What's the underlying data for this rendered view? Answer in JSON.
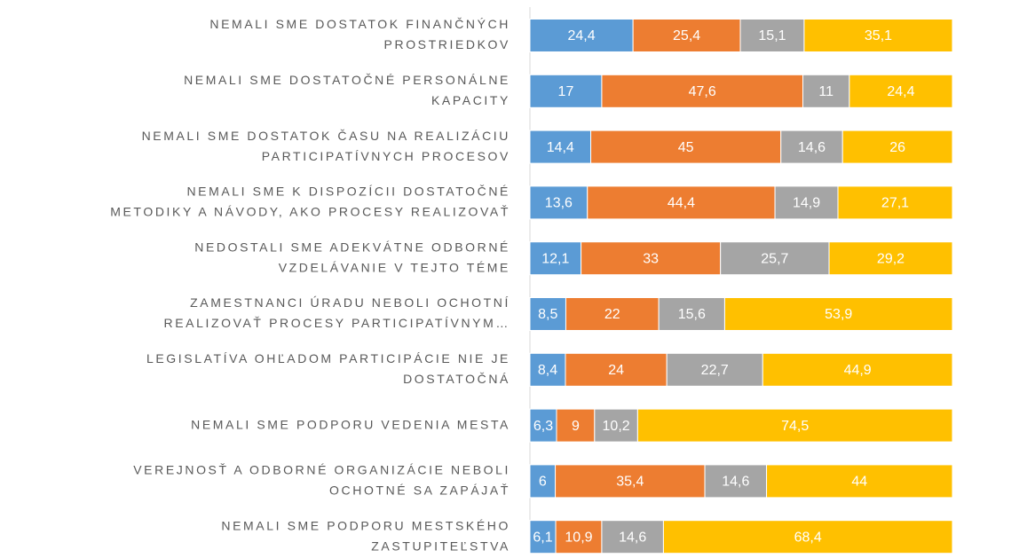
{
  "chart_data": {
    "type": "stacked-bar-horizontal",
    "categories": [
      [
        "NEMALI SME DOSTATOK FINANČNÝCH",
        "PROSTRIEDKOV"
      ],
      [
        "NEMALI SME DOSTATOČNÉ PERSONÁLNE",
        "KAPACITY"
      ],
      [
        "NEMALI SME DOSTATOK ČASU NA REALIZÁCIU",
        "PARTICIPATÍVNYCH PROCESOV"
      ],
      [
        "NEMALI SME K DISPOZÍCII DOSTATOČNÉ",
        "METODIKY A NÁVODY, AKO PROCESY REALIZOVAŤ"
      ],
      [
        "NEDOSTALI SME ADEKVÁTNE ODBORNÉ",
        "VZDELÁVANIE V TEJTO TÉME"
      ],
      [
        "ZAMESTNANCI ÚRADU NEBOLI OCHOTNÍ",
        "REALIZOVAŤ PROCESY PARTICIPATÍVNYM…"
      ],
      [
        "LEGISLATÍVA OHĽADOM PARTICIPÁCIE NIE JE",
        "DOSTATOČNÁ"
      ],
      [
        "NEMALI SME PODPORU VEDENIA MESTA"
      ],
      [
        "VEREJNOSŤ A ODBORNÉ ORGANIZÁCIE NEBOLI",
        "OCHOTNÉ SA ZAPÁJAŤ"
      ],
      [
        "NEMALI SME PODPORU MESTSKÉHO",
        "ZASTUPITEĽSTVA"
      ]
    ],
    "series": [
      {
        "color": "#5b9bd5",
        "values": [
          24.4,
          17,
          14.4,
          13.6,
          12.1,
          8.5,
          8.4,
          6.3,
          6,
          6.1
        ],
        "value_labels": [
          "24,4",
          "17",
          "14,4",
          "13,6",
          "12,1",
          "8,5",
          "8,4",
          "6,3",
          "6",
          "6,1"
        ]
      },
      {
        "color": "#ed7d31",
        "values": [
          25.4,
          47.6,
          45,
          44.4,
          33,
          22,
          24,
          9,
          35.4,
          10.9
        ],
        "value_labels": [
          "25,4",
          "47,6",
          "45",
          "44,4",
          "33",
          "22",
          "24",
          "9",
          "35,4",
          "10,9"
        ]
      },
      {
        "color": "#a5a5a5",
        "values": [
          15.1,
          11,
          14.6,
          14.9,
          25.7,
          15.6,
          22.7,
          10.2,
          14.6,
          14.6
        ],
        "value_labels": [
          "15,1",
          "11",
          "14,6",
          "14,9",
          "25,7",
          "15,6",
          "22,7",
          "10,2",
          "14,6",
          "14,6"
        ]
      },
      {
        "color": "#ffc000",
        "values": [
          35.1,
          24.4,
          26,
          27.1,
          29.2,
          53.9,
          44.9,
          74.5,
          44,
          68.4
        ],
        "value_labels": [
          "35,1",
          "24,4",
          "26",
          "27,1",
          "29,2",
          "53,9",
          "44,9",
          "74,5",
          "44",
          "68,4"
        ]
      }
    ],
    "xlim": [
      0,
      100
    ]
  }
}
